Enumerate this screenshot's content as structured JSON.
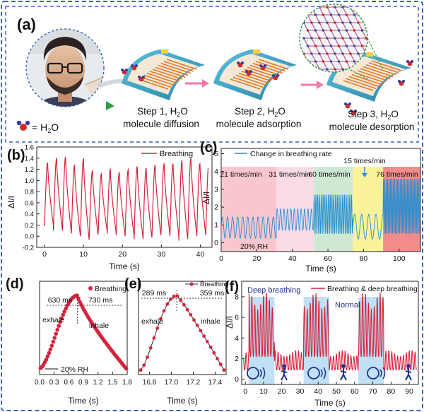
{
  "panel_a": {
    "label": "(a)",
    "legend_text": "= H",
    "legend_sub": "2",
    "legend_end": "O",
    "zoom_title": "",
    "steps": [
      {
        "line1": "Step 1, H",
        "sub": "2",
        "line1_end": "O",
        "line2": "molecule diffusion"
      },
      {
        "line1": "Step 2, H",
        "sub": "2",
        "line1_end": "O",
        "line2": "molecule adsorption"
      },
      {
        "line1": "Step 3, H",
        "sub": "2",
        "line1_end": "O",
        "line2": "molecule desorption"
      }
    ]
  },
  "colors": {
    "frame_border": "#3a66b0",
    "curve_red": "#d6223c",
    "curve_blue": "#2a8fd0",
    "highlight_blue": "#bfe0f5",
    "arrow_pink": "#ef7aa8",
    "device_teal": "#3ba7c9",
    "electrode_orange": "#e07a2a",
    "bg_pink": "#f8c6cf",
    "bg_lightpink": "#f9dbe7",
    "bg_green": "#cde8d3",
    "bg_yellow": "#fbf39a",
    "bg_red": "#f28b8b",
    "text_navy": "#22308a"
  },
  "chart_data": [
    {
      "panel": "(b)",
      "type": "line",
      "title": "",
      "xlabel": "Time (s)",
      "ylabel": "ΔI/I",
      "legend": "Breathing",
      "xlim": [
        -2,
        43
      ],
      "ylim": [
        -0.2,
        1.6
      ],
      "xticks": [
        0,
        10,
        20,
        30,
        40
      ],
      "yticks": [
        -0.2,
        0.0,
        0.2,
        0.4,
        0.6,
        0.8,
        1.0,
        1.2,
        1.4,
        1.6
      ],
      "ytick_labels": [
        "-0.2",
        "0.0",
        "0.2",
        "0.4",
        "0.6",
        "0.8",
        "1.0",
        "1.2",
        "1.4",
        "1.6"
      ],
      "series": [
        {
          "name": "Breathing",
          "period": 2.3,
          "start": 0,
          "end": 42,
          "peaks": [
            1.32,
            1.4,
            1.42,
            1.28,
            1.4,
            1.18,
            1.12,
            1.2,
            1.15,
            1.2,
            1.25,
            1.22,
            1.28,
            1.3,
            1.3,
            1.36,
            1.4,
            1.3,
            1.32
          ],
          "troughs": [
            0.18,
            0.1,
            0.05,
            0.0,
            -0.1,
            0.0,
            0.08,
            0.05,
            0.02,
            0.0,
            -0.05,
            -0.05,
            0.0,
            0.02,
            0.0,
            -0.08,
            0.0,
            0.02,
            0.05
          ]
        }
      ]
    },
    {
      "panel": "(c)",
      "type": "line",
      "title": "",
      "xlabel": "Time (s)",
      "ylabel": "ΔI/I",
      "legend": "Change in breathing rate",
      "xlim": [
        0,
        112
      ],
      "ylim": [
        -0.5,
        5.3
      ],
      "xticks": [
        0,
        20,
        40,
        60,
        80,
        100
      ],
      "yticks": [
        0,
        1,
        2,
        3,
        4,
        5
      ],
      "ytick_labels": [
        "0",
        "1",
        "2",
        "3",
        "4",
        "5"
      ],
      "segments": [
        {
          "x0": 0,
          "x1": 31,
          "rate": "21 times/min",
          "freq": 0.35,
          "base": 0.25,
          "amp": 1.2
        },
        {
          "x0": 31,
          "x1": 52,
          "rate": "31 times/min",
          "freq": 0.52,
          "base": 0.7,
          "amp": 1.2
        },
        {
          "x0": 52,
          "x1": 74,
          "rate": "60 times/min",
          "freq": 1.0,
          "base": 0.5,
          "amp": 2.2
        },
        {
          "x0": 74,
          "x1": 91,
          "rate": "15 times/min",
          "freq": 0.25,
          "base": 0.2,
          "amp": 1.4
        },
        {
          "x0": 91,
          "x1": 112,
          "rate": "76 times/min",
          "freq": 1.27,
          "base": 0.5,
          "amp": 3.1
        }
      ],
      "annotation": "20% RH"
    },
    {
      "panel": "(d)",
      "type": "scatter",
      "title": "",
      "xlabel": "Time (s)",
      "ylabel": "",
      "legend": "Breathing",
      "xlim": [
        0,
        1.8
      ],
      "ylim": [
        0,
        1.25
      ],
      "xticks": [
        0.0,
        0.3,
        0.6,
        0.9,
        1.2,
        1.5,
        1.8
      ],
      "xtick_labels": [
        "0.0",
        "0.3",
        "0.6",
        "0.9",
        "1.2",
        "1.5",
        "1.8"
      ],
      "peak_x": 0.78,
      "points": 62,
      "annotations": {
        "left_ms": "630 ms",
        "right_ms": "730 ms",
        "exhale": "exhale",
        "inhale": "inhale",
        "rh": "20% RH"
      }
    },
    {
      "panel": "(e)",
      "type": "line",
      "title": "",
      "xlabel": "Time (s)",
      "ylabel": "",
      "legend": "Breathing",
      "xlim": [
        16.7,
        17.5
      ],
      "ylim": [
        0,
        1.25
      ],
      "xticks": [
        16.8,
        17.0,
        17.2,
        17.4
      ],
      "xtick_labels": [
        "16.8",
        "17.0",
        "17.2",
        "17.4"
      ],
      "peak_x": 17.05,
      "points": 26,
      "annotations": {
        "left_ms": "289 ms",
        "right_ms": "359 ms",
        "exhale": "exhale",
        "inhale": "inhale"
      }
    },
    {
      "panel": "(f)",
      "type": "line",
      "title": "",
      "xlabel": "Time (s)",
      "ylabel": "ΔI/I",
      "legend": "Breathing & deep breathing",
      "xlim": [
        -2,
        95
      ],
      "ylim": [
        -0.5,
        9.5
      ],
      "xticks": [
        0,
        10,
        20,
        30,
        40,
        50,
        60,
        70,
        80,
        90
      ],
      "yticks": [
        0,
        2,
        4,
        6,
        8
      ],
      "ytick_labels": [
        "0",
        "2",
        "4",
        "6",
        "8"
      ],
      "deep_windows": [
        [
          2,
          16
        ],
        [
          32,
          46
        ],
        [
          62,
          76
        ]
      ],
      "annotations": {
        "deep": "Deep breathing",
        "normal": "Normal"
      }
    }
  ]
}
